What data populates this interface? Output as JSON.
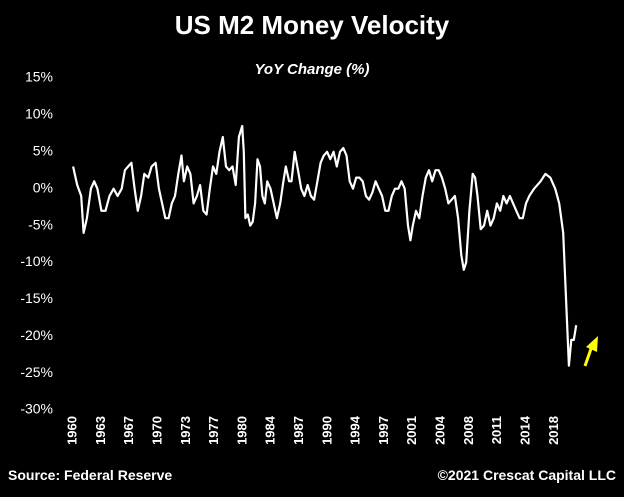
{
  "chart_data": {
    "type": "line",
    "title": "US M2 Money Velocity",
    "subtitle": "YoY Change (%)",
    "source": "Source: Federal Reserve",
    "copyright": "©2021 Crescat Capital LLC",
    "xlim": [
      1958.5,
      2027
    ],
    "ylim": [
      -30,
      15
    ],
    "yticks": [
      {
        "value": 15,
        "label": "15%"
      },
      {
        "value": 10,
        "label": "10%"
      },
      {
        "value": 5,
        "label": "5%"
      },
      {
        "value": 0,
        "label": "0%"
      },
      {
        "value": -5,
        "label": "-5%"
      },
      {
        "value": -10,
        "label": "-10%"
      },
      {
        "value": -15,
        "label": "-15%"
      },
      {
        "value": -20,
        "label": "-20%"
      },
      {
        "value": -25,
        "label": "-25%"
      },
      {
        "value": -30,
        "label": "-30%"
      }
    ],
    "xticks": [
      {
        "value": 1960,
        "label": "1960"
      },
      {
        "value": 1963.5,
        "label": "1963"
      },
      {
        "value": 1967,
        "label": "1967"
      },
      {
        "value": 1970.5,
        "label": "1970"
      },
      {
        "value": 1974,
        "label": "1973"
      },
      {
        "value": 1977.5,
        "label": "1977"
      },
      {
        "value": 1981,
        "label": "1980"
      },
      {
        "value": 1984.5,
        "label": "1984"
      },
      {
        "value": 1988,
        "label": "1987"
      },
      {
        "value": 1991.5,
        "label": "1990"
      },
      {
        "value": 1995,
        "label": "1994"
      },
      {
        "value": 1998.5,
        "label": "1997"
      },
      {
        "value": 2002,
        "label": "2001"
      },
      {
        "value": 2005.5,
        "label": "2004"
      },
      {
        "value": 2009,
        "label": "2008"
      },
      {
        "value": 2012.5,
        "label": "2011"
      },
      {
        "value": 2016,
        "label": "2014"
      },
      {
        "value": 2019.5,
        "label": "2018"
      }
    ],
    "series": [
      {
        "color": "#ffffff",
        "x": [
          1960.0,
          1960.5,
          1961,
          1961.3,
          1961.7,
          1962.2,
          1962.6,
          1963,
          1963.5,
          1964,
          1964.5,
          1965,
          1965.5,
          1966,
          1966.4,
          1966.8,
          1967.2,
          1967.6,
          1968,
          1968.4,
          1968.8,
          1969.3,
          1969.7,
          1970.2,
          1970.6,
          1971,
          1971.4,
          1971.8,
          1972.2,
          1972.6,
          1973,
          1973.4,
          1973.7,
          1974.1,
          1974.5,
          1974.9,
          1975.3,
          1975.7,
          1976.1,
          1976.5,
          1976.9,
          1977.3,
          1977.7,
          1978.1,
          1978.5,
          1978.9,
          1979.3,
          1979.7,
          1980.1,
          1980.5,
          1980.9,
          1981.1,
          1981.3,
          1981.6,
          1981.9,
          1982.2,
          1982.5,
          1982.8,
          1983.1,
          1983.4,
          1983.7,
          1984,
          1984.4,
          1984.8,
          1985.2,
          1985.6,
          1986,
          1986.3,
          1986.7,
          1987,
          1987.4,
          1987.8,
          1988.2,
          1988.6,
          1989,
          1989.4,
          1989.8,
          1990.2,
          1990.6,
          1991,
          1991.4,
          1991.8,
          1992.2,
          1992.6,
          1993,
          1993.4,
          1993.8,
          1994.2,
          1994.6,
          1995,
          1995.4,
          1995.8,
          1996.2,
          1996.6,
          1997,
          1997.4,
          1997.8,
          1998.2,
          1998.6,
          1999,
          1999.4,
          1999.8,
          2000.2,
          2000.6,
          2001,
          2001.4,
          2001.7,
          2002,
          2002.4,
          2002.8,
          2003.2,
          2003.6,
          2004,
          2004.4,
          2004.8,
          2005.2,
          2005.6,
          2006,
          2006.4,
          2006.8,
          2007.2,
          2007.6,
          2008,
          2008.3,
          2008.6,
          2009,
          2009.4,
          2009.7,
          2010,
          2010.4,
          2010.8,
          2011.2,
          2011.6,
          2012,
          2012.4,
          2012.8,
          2013.2,
          2013.6,
          2014,
          2014.4,
          2014.8,
          2015.2,
          2015.6,
          2016,
          2016.4,
          2017,
          2017.8,
          2018.4,
          2019,
          2019.6,
          2020.1,
          2020.6,
          2021.3,
          2021.6,
          2021.9,
          2022.2
        ],
        "values": [
          3,
          0.5,
          -1,
          -6,
          -4,
          0,
          1,
          0,
          -3,
          -3,
          -1,
          0,
          -1,
          0,
          2.5,
          3,
          3.5,
          0,
          -3,
          -1,
          2,
          1.5,
          3,
          3.5,
          0,
          -2,
          -4,
          -4,
          -2,
          -1,
          2,
          4.5,
          1,
          3,
          2,
          -2,
          -1,
          0.5,
          -3,
          -3.5,
          0,
          3,
          2,
          5,
          7,
          3,
          2.5,
          3,
          0.5,
          7,
          8.5,
          5,
          -4,
          -3.5,
          -5,
          -4.5,
          -2,
          4,
          3,
          -1,
          -2,
          1,
          0,
          -2,
          -4,
          -2,
          1,
          3,
          1,
          1,
          5,
          2.5,
          0,
          -1,
          0.5,
          -1,
          -1.5,
          1,
          3.5,
          4.5,
          5,
          4,
          5,
          3,
          5,
          5.5,
          4.5,
          1,
          0,
          1.5,
          1.5,
          1,
          -1,
          -1.5,
          -0.5,
          1,
          0,
          -1,
          -3,
          -3,
          -1,
          0,
          0,
          1,
          0,
          -5,
          -7,
          -5,
          -3,
          -4,
          -1,
          1.5,
          2.5,
          1,
          2.5,
          2.5,
          1.5,
          0,
          -2,
          -1.5,
          -1,
          -4,
          -9,
          -11,
          -10,
          -3,
          2,
          1.5,
          -1,
          -5.5,
          -5,
          -3,
          -5,
          -4,
          -2,
          -3,
          -1,
          -2,
          -1,
          -2,
          -3,
          -4,
          -4,
          -2,
          -1,
          0,
          1,
          2,
          1.5,
          0,
          -2,
          -6,
          -24,
          -20.5,
          -20.5,
          -18.5
        ]
      }
    ]
  }
}
